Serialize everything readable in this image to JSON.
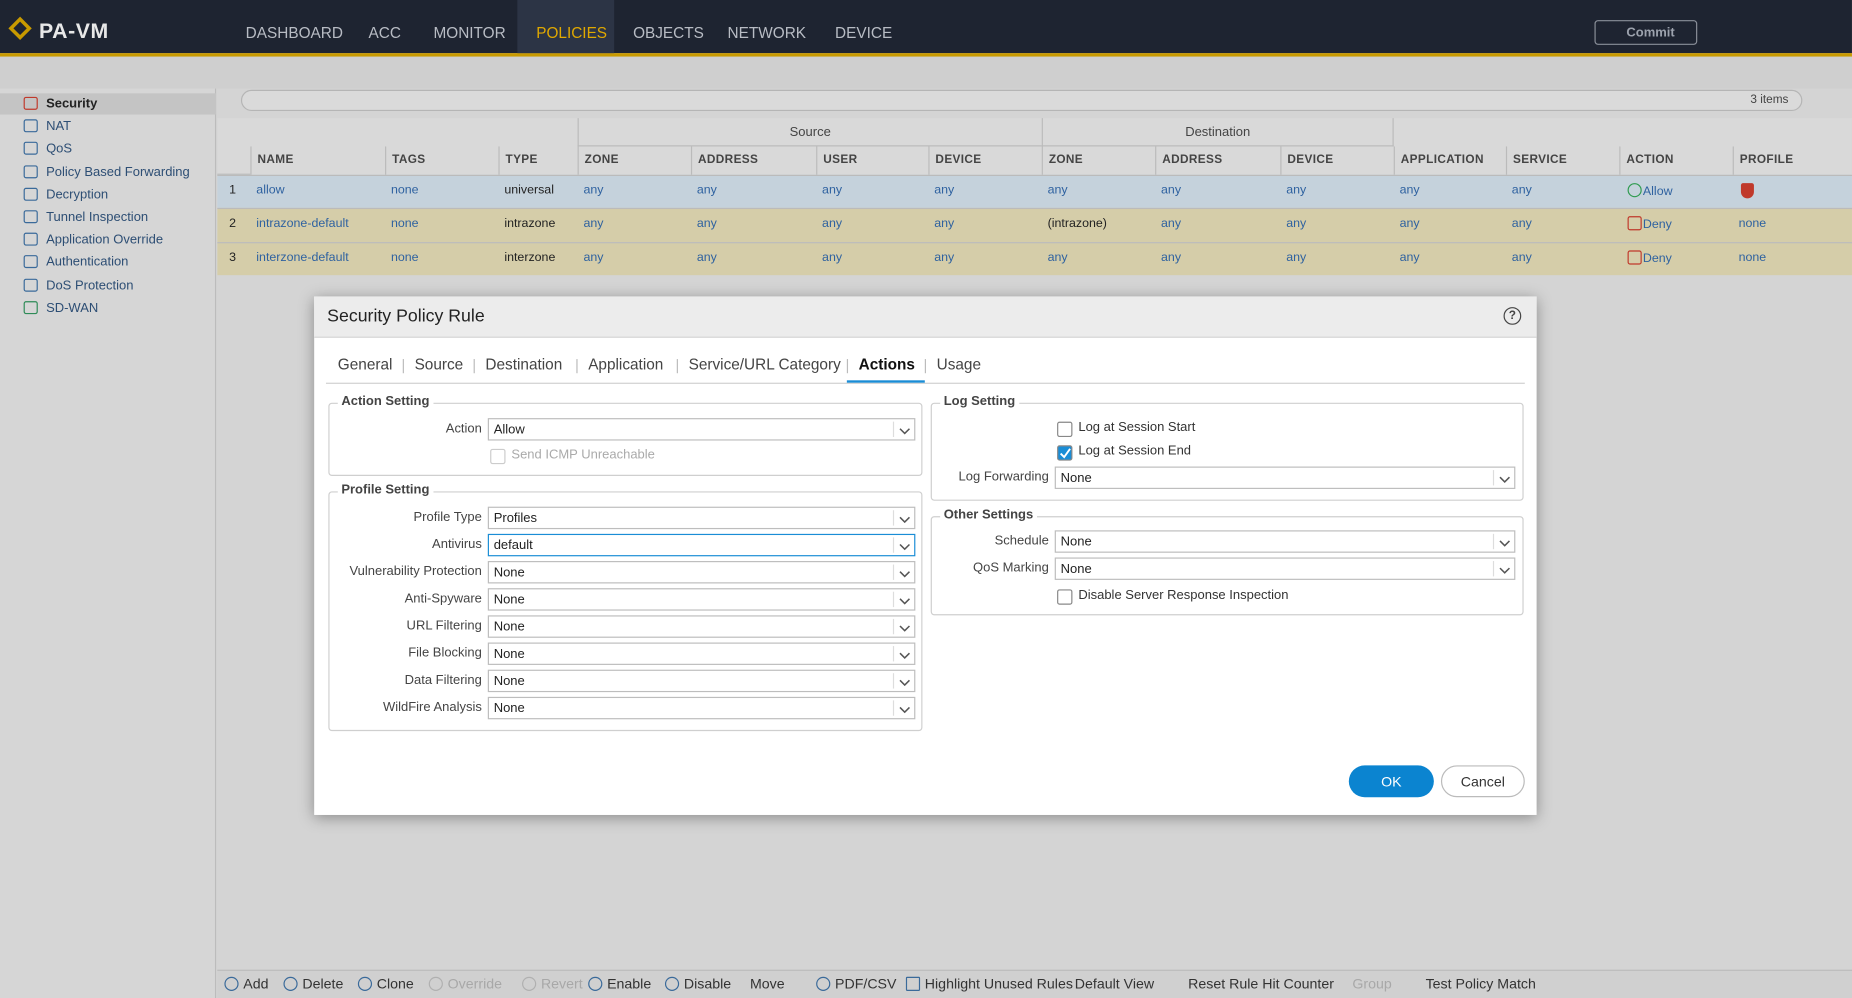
{
  "header": {
    "logo": "PA-VM",
    "nav": [
      "DASHBOARD",
      "ACC",
      "MONITOR",
      "POLICIES",
      "OBJECTS",
      "NETWORK",
      "DEVICE"
    ],
    "active_nav": 3,
    "commit": "Commit"
  },
  "sidebar": {
    "items": [
      "Security",
      "NAT",
      "QoS",
      "Policy Based Forwarding",
      "Decryption",
      "Tunnel Inspection",
      "Application Override",
      "Authentication",
      "DoS Protection",
      "SD-WAN"
    ],
    "selected": 0
  },
  "search": {
    "count": "3 items"
  },
  "table": {
    "groups": [
      "Source",
      "Destination"
    ],
    "columns": [
      "NAME",
      "TAGS",
      "TYPE",
      "ZONE",
      "ADDRESS",
      "USER",
      "DEVICE",
      "ZONE",
      "ADDRESS",
      "DEVICE",
      "APPLICATION",
      "SERVICE",
      "ACTION",
      "PROFILE"
    ],
    "rows": [
      [
        "1",
        "allow",
        "none",
        "universal",
        "any",
        "any",
        "any",
        "any",
        "any",
        "any",
        "any",
        "any",
        "any",
        "Allow"
      ],
      [
        "2",
        "intrazone-default",
        "none",
        "intrazone",
        "any",
        "any",
        "any",
        "any",
        "(intrazone)",
        "any",
        "any",
        "any",
        "any",
        "Deny",
        "none"
      ],
      [
        "3",
        "interzone-default",
        "none",
        "interzone",
        "any",
        "any",
        "any",
        "any",
        "any",
        "any",
        "any",
        "any",
        "any",
        "Deny",
        "none"
      ]
    ]
  },
  "dialog": {
    "title": "Security Policy Rule",
    "tabs": [
      "General",
      "Source",
      "Destination",
      "Application",
      "Service/URL Category",
      "Actions",
      "Usage"
    ],
    "active_tab": 5,
    "action_setting": {
      "title": "Action Setting",
      "fields": [
        {
          "label": "Action",
          "value": "Allow"
        }
      ],
      "checkbox": {
        "label": "Send ICMP Unreachable",
        "checked": false,
        "disabled": true
      }
    },
    "profile_setting": {
      "title": "Profile Setting",
      "fields": [
        {
          "label": "Profile Type",
          "value": "Profiles"
        },
        {
          "label": "Antivirus",
          "value": "default",
          "focused": true
        },
        {
          "label": "Vulnerability Protection",
          "value": "None"
        },
        {
          "label": "Anti-Spyware",
          "value": "None"
        },
        {
          "label": "URL Filtering",
          "value": "None"
        },
        {
          "label": "File Blocking",
          "value": "None"
        },
        {
          "label": "Data Filtering",
          "value": "None"
        },
        {
          "label": "WildFire Analysis",
          "value": "None"
        }
      ]
    },
    "log_setting": {
      "title": "Log Setting",
      "checkboxes": [
        {
          "label": "Log at Session Start",
          "checked": false
        },
        {
          "label": "Log at Session End",
          "checked": true
        }
      ],
      "fields": [
        {
          "label": "Log Forwarding",
          "value": "None"
        }
      ]
    },
    "other_settings": {
      "title": "Other Settings",
      "fields": [
        {
          "label": "Schedule",
          "value": "None"
        },
        {
          "label": "QoS Marking",
          "value": "None"
        }
      ],
      "checkbox": {
        "label": "Disable Server Response Inspection",
        "checked": false
      }
    },
    "ok": "OK",
    "cancel": "Cancel"
  },
  "toolbar": [
    {
      "label": "Add"
    },
    {
      "label": "Delete"
    },
    {
      "label": "Clone"
    },
    {
      "label": "Override",
      "disabled": true
    },
    {
      "label": "Revert",
      "disabled": true
    },
    {
      "label": "Enable"
    },
    {
      "label": "Disable"
    },
    {
      "label": "Move"
    },
    {
      "label": "PDF/CSV"
    },
    {
      "label": "Highlight Unused Rules"
    },
    {
      "label": "Default View"
    },
    {
      "label": "Reset Rule Hit Counter"
    },
    {
      "label": "Group",
      "disabled": true
    },
    {
      "label": "Test Policy Match"
    }
  ]
}
